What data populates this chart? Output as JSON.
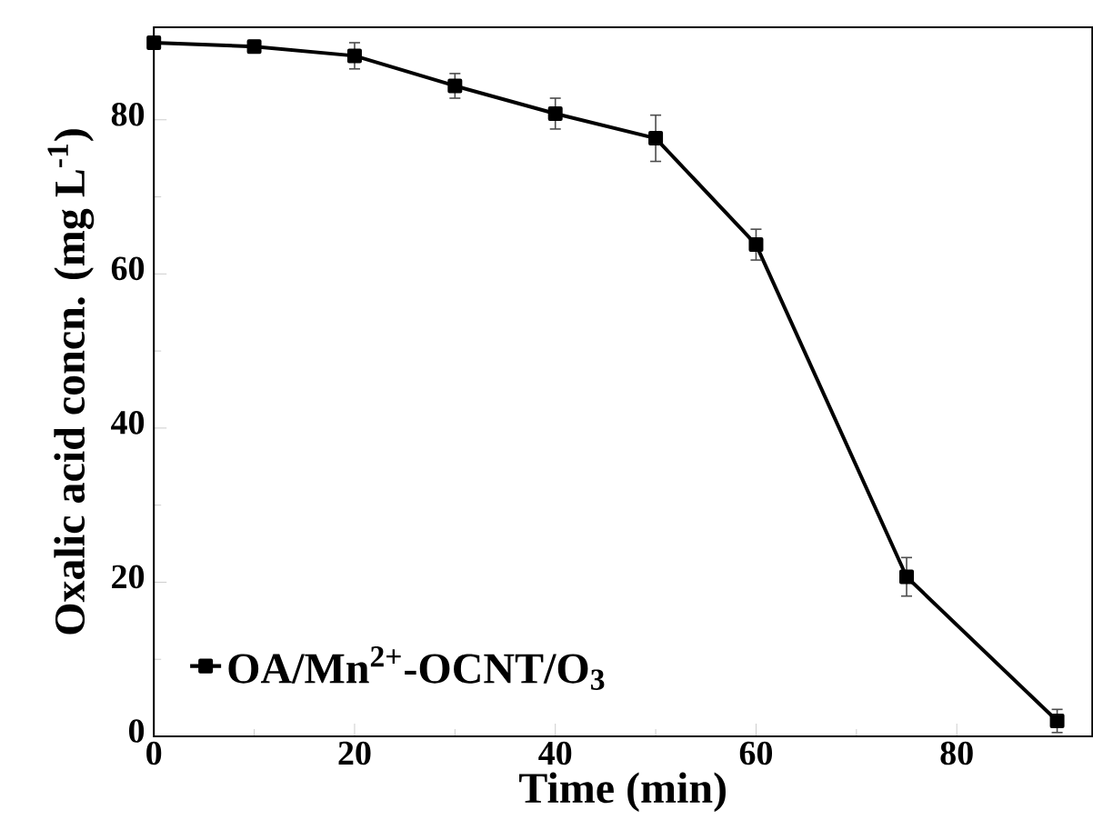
{
  "chart_data": {
    "type": "line",
    "xlabel": "Time (min)",
    "ylabel": "Oxalic acid concn. (mg L$^{-1}$)",
    "x": [
      0,
      10,
      20,
      30,
      40,
      50,
      60,
      75,
      90
    ],
    "series": [
      {
        "name": "OA/Mn$^{2+}$-OCNT/O$_{3}$",
        "color": "#000000",
        "values": [
          90.0,
          89.5,
          88.3,
          84.4,
          80.8,
          77.6,
          63.8,
          20.7,
          2.0
        ],
        "errors": [
          0.5,
          0.8,
          1.7,
          1.6,
          2.0,
          3.0,
          2.0,
          2.5,
          1.5
        ]
      }
    ],
    "xlim": [
      0,
      93.5
    ],
    "ylim": [
      0,
      92
    ],
    "xticks": [
      0,
      20,
      40,
      60,
      80
    ],
    "yticks": [
      0,
      20,
      40,
      60,
      80
    ],
    "legend": "bottom left",
    "marker": "square",
    "line_style": "solid",
    "grid": false
  }
}
